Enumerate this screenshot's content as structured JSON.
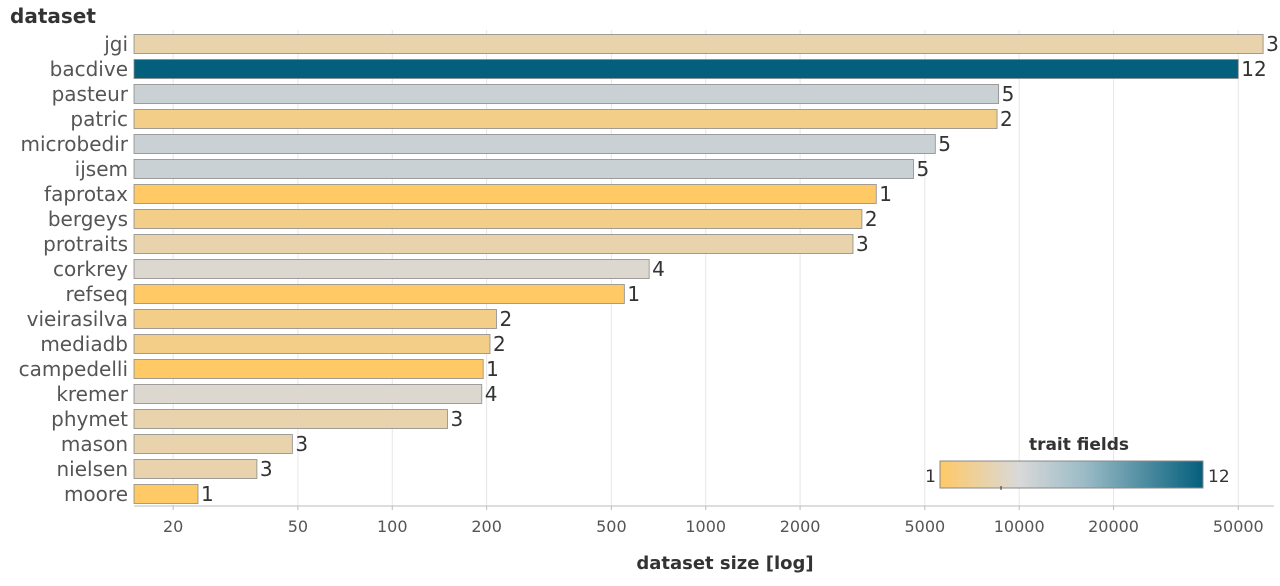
{
  "chart_data": {
    "type": "bar",
    "orientation": "horizontal",
    "title": "dataset",
    "xlabel": "dataset size [log]",
    "ylabel": "",
    "x_scale": "log",
    "xlim": [
      15,
      65000
    ],
    "x_ticks": [
      20,
      50,
      100,
      200,
      500,
      1000,
      2000,
      5000,
      10000,
      20000,
      50000
    ],
    "grid": "vertical",
    "categories": [
      "jgi",
      "bacdive",
      "pasteur",
      "patric",
      "microbedir",
      "ijsem",
      "faprotax",
      "bergeys",
      "protraits",
      "corkrey",
      "refseq",
      "vieirasilva",
      "mediadb",
      "campedelli",
      "kremer",
      "phymet",
      "mason",
      "nielsen",
      "moore"
    ],
    "values": [
      60000,
      50000,
      8600,
      8500,
      5400,
      4600,
      3500,
      3150,
      2950,
      660,
      550,
      215,
      205,
      195,
      193,
      150,
      48,
      37,
      24
    ],
    "trait_fields": [
      3,
      12,
      5,
      2,
      5,
      5,
      1,
      2,
      3,
      4,
      1,
      2,
      2,
      1,
      4,
      3,
      3,
      3,
      1
    ],
    "color_legend": {
      "title": "trait fields",
      "min": 1,
      "max": 12,
      "min_label": "1",
      "max_label": "12",
      "placement": "bottom-right",
      "colors": [
        "#ffc966",
        "#d9d9d9",
        "#9bbbc6",
        "#045f7d"
      ]
    }
  }
}
